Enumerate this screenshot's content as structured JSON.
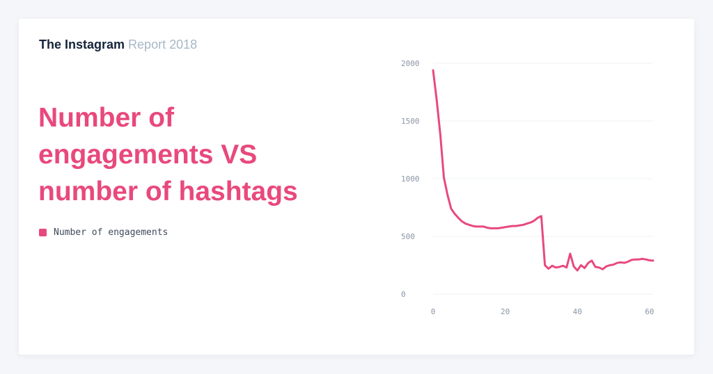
{
  "brand": {
    "main": "The Instagram",
    "sub": "Report 2018"
  },
  "headline": {
    "lines": [
      "Number of",
      "engagements VS",
      "number of hashtags"
    ]
  },
  "legend": {
    "label": "Number of engagements"
  },
  "colors": {
    "accent": "#e8497d",
    "brand_dark": "#16243a",
    "brand_light": "#a7b8c6",
    "grid": "#edf0f4",
    "tick_text": "#8a96a6"
  },
  "chart_data": {
    "type": "line",
    "title": "",
    "xlabel": "",
    "ylabel": "",
    "xlim": [
      0,
      61
    ],
    "ylim": [
      0,
      2000
    ],
    "x_ticks": [
      0,
      20,
      40,
      60
    ],
    "y_ticks": [
      0,
      500,
      1000,
      1500,
      2000
    ],
    "grid": "horizontal",
    "series": [
      {
        "name": "Number of engagements",
        "x": [
          0,
          1,
          2,
          3,
          4,
          5,
          6,
          7,
          8,
          9,
          10,
          11,
          12,
          13,
          14,
          15,
          16,
          17,
          18,
          19,
          20,
          21,
          22,
          23,
          24,
          25,
          26,
          27,
          28,
          29,
          30,
          31,
          32,
          33,
          34,
          35,
          36,
          37,
          38,
          39,
          40,
          41,
          42,
          43,
          44,
          45,
          46,
          47,
          48,
          49,
          50,
          51,
          52,
          53,
          54,
          55,
          56,
          57,
          58,
          59,
          60,
          61
        ],
        "values": [
          1940,
          1680,
          1380,
          1010,
          860,
          740,
          695,
          660,
          630,
          610,
          600,
          590,
          585,
          585,
          585,
          575,
          570,
          570,
          570,
          575,
          580,
          585,
          590,
          590,
          595,
          600,
          610,
          620,
          635,
          660,
          675,
          250,
          220,
          245,
          230,
          235,
          245,
          230,
          350,
          240,
          205,
          250,
          225,
          270,
          290,
          235,
          230,
          215,
          240,
          250,
          255,
          270,
          275,
          270,
          280,
          295,
          300,
          300,
          305,
          300,
          292,
          290
        ]
      }
    ]
  }
}
